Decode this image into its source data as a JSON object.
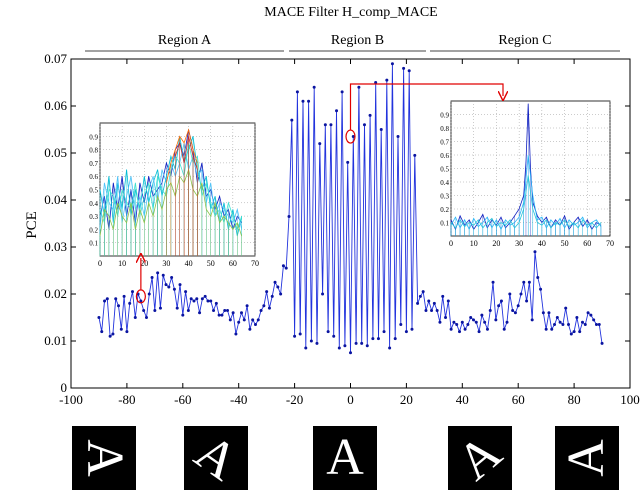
{
  "chart_data": {
    "type": "line",
    "title": "MACE Filter H_comp_MACE",
    "ylabel": "PCE",
    "xlabel": "",
    "xlim": [
      -100,
      100
    ],
    "ylim": [
      0,
      0.07
    ],
    "x_ticks": [
      -100,
      -80,
      -60,
      -40,
      -20,
      0,
      20,
      40,
      60,
      80,
      100
    ],
    "y_ticks": [
      0,
      0.01,
      0.02,
      0.03,
      0.04,
      0.05,
      0.06,
      0.07
    ],
    "grid": false,
    "line_color": "#2233dd",
    "marker": "dot",
    "regions": [
      {
        "label": "Region A",
        "x_start": -100,
        "x_end": -25
      },
      {
        "label": "Region B",
        "x_start": -25,
        "x_end": 25
      },
      {
        "label": "Region C",
        "x_start": 25,
        "x_end": 100
      }
    ],
    "series": [
      {
        "x": [
          -90,
          -89,
          -88,
          -87,
          -86,
          -85,
          -84,
          -83,
          -82,
          -81,
          -80,
          -79,
          -78,
          -77,
          -76,
          -75,
          -74,
          -73,
          -72,
          -71,
          -70,
          -69,
          -68,
          -67,
          -66,
          -65,
          -64,
          -63,
          -62,
          -61,
          -60,
          -59,
          -58,
          -57,
          -56,
          -55,
          -54,
          -53,
          -52,
          -51,
          -50,
          -49,
          -48,
          -47,
          -46,
          -45,
          -44,
          -43,
          -42,
          -41,
          -40,
          -39,
          -38,
          -37,
          -36,
          -35,
          -34,
          -33,
          -32,
          -31,
          -30,
          -29,
          -28,
          -27,
          -26,
          -25,
          -24,
          -23,
          -22,
          -21,
          -20,
          -19,
          -18,
          -17,
          -16,
          -15,
          -14,
          -13,
          -12,
          -11,
          -10,
          -9,
          -8,
          -7,
          -6,
          -5,
          -4,
          -3,
          -2,
          -1,
          0,
          1,
          2,
          3,
          4,
          5,
          6,
          7,
          8,
          9,
          10,
          11,
          12,
          13,
          14,
          15,
          16,
          17,
          18,
          19,
          20,
          21,
          22,
          23,
          24,
          25,
          26,
          27,
          28,
          29,
          30,
          31,
          32,
          33,
          34,
          35,
          36,
          37,
          38,
          39,
          40,
          41,
          42,
          43,
          44,
          45,
          46,
          47,
          48,
          49,
          50,
          51,
          52,
          53,
          54,
          55,
          56,
          57,
          58,
          59,
          60,
          61,
          62,
          63,
          64,
          65,
          66,
          67,
          68,
          69,
          70,
          71,
          72,
          73,
          74,
          75,
          76,
          77,
          78,
          79,
          80,
          81,
          82,
          83,
          84,
          85,
          86,
          87,
          88,
          89,
          90
        ],
        "y": [
          0.015,
          0.012,
          0.0185,
          0.019,
          0.011,
          0.0115,
          0.019,
          0.0175,
          0.0125,
          0.0195,
          0.012,
          0.018,
          0.0205,
          0.015,
          0.02,
          0.0185,
          0.0165,
          0.015,
          0.02,
          0.0235,
          0.0165,
          0.0245,
          0.017,
          0.024,
          0.022,
          0.0215,
          0.0235,
          0.021,
          0.017,
          0.022,
          0.0155,
          0.0205,
          0.0165,
          0.019,
          0.0185,
          0.019,
          0.016,
          0.019,
          0.0195,
          0.0185,
          0.0185,
          0.0165,
          0.018,
          0.0155,
          0.0155,
          0.0165,
          0.0165,
          0.0145,
          0.016,
          0.0115,
          0.014,
          0.016,
          0.0145,
          0.0175,
          0.0125,
          0.0145,
          0.0135,
          0.0145,
          0.0165,
          0.0175,
          0.0205,
          0.017,
          0.0195,
          0.0225,
          0.0215,
          0.02,
          0.026,
          0.0255,
          0.0365,
          0.057,
          0.011,
          0.063,
          0.0115,
          0.061,
          0.0085,
          0.061,
          0.01,
          0.064,
          0.0095,
          0.052,
          0.02,
          0.056,
          0.012,
          0.056,
          0.011,
          0.059,
          0.0085,
          0.063,
          0.009,
          0.048,
          0.0075,
          0.0535,
          0.0095,
          0.064,
          0.0095,
          0.056,
          0.009,
          0.058,
          0.0105,
          0.065,
          0.0105,
          0.055,
          0.012,
          0.0655,
          0.0085,
          0.069,
          0.0105,
          0.0535,
          0.0135,
          0.068,
          0.012,
          0.0675,
          0.0125,
          0.0495,
          0.018,
          0.0195,
          0.0205,
          0.0165,
          0.0185,
          0.0165,
          0.018,
          0.0165,
          0.014,
          0.0195,
          0.015,
          0.0185,
          0.0125,
          0.014,
          0.0135,
          0.012,
          0.014,
          0.0125,
          0.0135,
          0.015,
          0.0145,
          0.014,
          0.012,
          0.0155,
          0.014,
          0.0125,
          0.0165,
          0.0225,
          0.0145,
          0.0175,
          0.0185,
          0.0125,
          0.014,
          0.02,
          0.0165,
          0.016,
          0.0175,
          0.02,
          0.0225,
          0.0185,
          0.0225,
          0.0145,
          0.029,
          0.0235,
          0.021,
          0.016,
          0.0125,
          0.016,
          0.0125,
          0.0135,
          0.015,
          0.014,
          0.0135,
          0.017,
          0.0135,
          0.0115,
          0.012,
          0.015,
          0.012,
          0.014,
          0.0135,
          0.016,
          0.0155,
          0.0145,
          0.0135,
          0.0135,
          0.0095
        ]
      }
    ],
    "annotations": [
      {
        "type": "circle",
        "x": -75,
        "y": 0.0195
      },
      {
        "type": "circle",
        "x": 0,
        "y": 0.0535
      }
    ],
    "insets": [
      {
        "position": "left-middle",
        "type": "line",
        "xlim": [
          0,
          70
        ],
        "ylim": [
          0,
          1
        ],
        "x_ticks": [
          0,
          10,
          20,
          30,
          40,
          50,
          60,
          70
        ],
        "y_ticks": [
          0.1,
          0.2,
          0.3,
          0.4,
          0.5,
          0.6,
          0.7,
          0.8,
          0.9
        ],
        "grid": true,
        "colors": [
          "#1020c0",
          "#00bcd4",
          "#4fc3f7",
          "#40e0d0",
          "#8bc34a",
          "#ff6a00",
          "#c62828"
        ],
        "series": [
          {
            "x": [
              0,
              2,
              4,
              6,
              8,
              10,
              12,
              14,
              16,
              18,
              20,
              22,
              24,
              26,
              28,
              30,
              32,
              34,
              36,
              38,
              40,
              42,
              44,
              46,
              48,
              50,
              52,
              54,
              56,
              58,
              60,
              62,
              64
            ],
            "y": [
              0.3,
              0.45,
              0.2,
              0.55,
              0.35,
              0.6,
              0.3,
              0.5,
              0.25,
              0.55,
              0.4,
              0.6,
              0.45,
              0.5,
              0.55,
              0.7,
              0.6,
              0.8,
              0.85,
              0.75,
              0.95,
              0.8,
              0.55,
              0.7,
              0.45,
              0.5,
              0.35,
              0.45,
              0.3,
              0.35,
              0.2,
              0.3,
              0.25
            ]
          },
          {
            "x": [
              0,
              2,
              4,
              6,
              8,
              10,
              12,
              14,
              16,
              18,
              20,
              22,
              24,
              26,
              28,
              30,
              32,
              34,
              36,
              38,
              40,
              42,
              44,
              46,
              48,
              50,
              52,
              54,
              56,
              58,
              60,
              62,
              64
            ],
            "y": [
              0.5,
              0.3,
              0.6,
              0.25,
              0.55,
              0.35,
              0.65,
              0.3,
              0.5,
              0.35,
              0.6,
              0.4,
              0.55,
              0.65,
              0.45,
              0.6,
              0.75,
              0.65,
              0.9,
              0.7,
              0.8,
              0.9,
              0.65,
              0.5,
              0.6,
              0.35,
              0.45,
              0.25,
              0.4,
              0.2,
              0.35,
              0.15,
              0.3
            ]
          },
          {
            "x": [
              0,
              2,
              4,
              6,
              8,
              10,
              12,
              14,
              16,
              18,
              20,
              22,
              24,
              26,
              28,
              30,
              32,
              34,
              36,
              38,
              40,
              42,
              44,
              46,
              48,
              50,
              52,
              54,
              56,
              58,
              60,
              62,
              64
            ],
            "y": [
              0.2,
              0.55,
              0.4,
              0.35,
              0.6,
              0.25,
              0.45,
              0.6,
              0.35,
              0.45,
              0.3,
              0.5,
              0.6,
              0.4,
              0.65,
              0.55,
              0.7,
              0.6,
              0.7,
              0.85,
              0.65,
              0.75,
              0.6,
              0.65,
              0.4,
              0.55,
              0.3,
              0.4,
              0.35,
              0.3,
              0.25,
              0.35,
              0.2
            ]
          },
          {
            "x": [
              0,
              2,
              4,
              6,
              8,
              10,
              12,
              14,
              16,
              18,
              20,
              22,
              24,
              26,
              28,
              30,
              32,
              34,
              36,
              38,
              40,
              42,
              44,
              46,
              48,
              50,
              52,
              54,
              56,
              58,
              60,
              62,
              64
            ],
            "y": [
              0.35,
              0.25,
              0.5,
              0.45,
              0.3,
              0.5,
              0.4,
              0.35,
              0.55,
              0.3,
              0.45,
              0.55,
              0.35,
              0.6,
              0.5,
              0.45,
              0.65,
              0.75,
              0.7,
              0.6,
              0.85,
              0.7,
              0.75,
              0.45,
              0.55,
              0.4,
              0.3,
              0.35,
              0.25,
              0.4,
              0.3,
              0.2,
              0.3
            ]
          },
          {
            "x": [
              0,
              2,
              4,
              6,
              8,
              10,
              12,
              14,
              16,
              18,
              20,
              22,
              24,
              26,
              28,
              30,
              32,
              34,
              36,
              38,
              40,
              42,
              44,
              46,
              48,
              50,
              52,
              54,
              56,
              58,
              60,
              62,
              64
            ],
            "y": [
              0.15,
              0.35,
              0.3,
              0.2,
              0.4,
              0.3,
              0.25,
              0.4,
              0.2,
              0.35,
              0.25,
              0.4,
              0.3,
              0.45,
              0.35,
              0.5,
              0.55,
              0.45,
              0.6,
              0.55,
              0.65,
              0.5,
              0.45,
              0.55,
              0.35,
              0.3,
              0.4,
              0.25,
              0.3,
              0.25,
              0.2,
              0.25,
              0.15
            ]
          },
          {
            "x": [
              30,
              32,
              34,
              36,
              38,
              40,
              42,
              44
            ],
            "y": [
              0.55,
              0.7,
              0.8,
              0.9,
              0.85,
              0.95,
              0.8,
              0.7
            ]
          },
          {
            "x": [
              34,
              36,
              38,
              40,
              42,
              44
            ],
            "y": [
              0.75,
              0.85,
              0.7,
              0.9,
              0.75,
              0.65
            ]
          }
        ]
      },
      {
        "position": "right-top",
        "type": "line",
        "xlim": [
          0,
          70
        ],
        "ylim": [
          0,
          1
        ],
        "x_ticks": [
          0,
          10,
          20,
          30,
          40,
          50,
          60,
          70
        ],
        "y_ticks": [
          0.1,
          0.2,
          0.3,
          0.4,
          0.5,
          0.6,
          0.7,
          0.8,
          0.9
        ],
        "grid": true,
        "colors": [
          "#1020c0",
          "#29b6f6",
          "#26c6da"
        ],
        "series": [
          {
            "x": [
              0,
              2,
              4,
              6,
              8,
              10,
              12,
              14,
              16,
              18,
              20,
              22,
              24,
              26,
              28,
              30,
              32,
              33,
              34,
              35,
              36,
              38,
              40,
              42,
              44,
              46,
              48,
              50,
              52,
              54,
              56,
              58,
              60,
              62,
              64,
              66
            ],
            "y": [
              0.12,
              0.05,
              0.15,
              0.08,
              0.12,
              0.05,
              0.1,
              0.16,
              0.06,
              0.12,
              0.08,
              0.14,
              0.06,
              0.1,
              0.15,
              0.2,
              0.3,
              0.55,
              0.98,
              0.5,
              0.25,
              0.15,
              0.1,
              0.14,
              0.06,
              0.12,
              0.08,
              0.15,
              0.05,
              0.1,
              0.14,
              0.07,
              0.12,
              0.05,
              0.1,
              0.08
            ]
          },
          {
            "x": [
              0,
              2,
              4,
              6,
              8,
              10,
              12,
              14,
              16,
              18,
              20,
              22,
              24,
              26,
              28,
              30,
              32,
              34,
              36,
              38,
              40,
              42,
              44,
              46,
              48,
              50,
              52,
              54,
              56,
              58,
              60,
              62,
              64,
              66
            ],
            "y": [
              0.08,
              0.14,
              0.06,
              0.12,
              0.05,
              0.13,
              0.07,
              0.1,
              0.14,
              0.06,
              0.12,
              0.05,
              0.12,
              0.08,
              0.1,
              0.14,
              0.25,
              0.6,
              0.3,
              0.12,
              0.14,
              0.06,
              0.12,
              0.08,
              0.13,
              0.06,
              0.12,
              0.08,
              0.1,
              0.14,
              0.06,
              0.1,
              0.12,
              0.07
            ]
          },
          {
            "x": [
              0,
              2,
              4,
              6,
              8,
              10,
              12,
              14,
              16,
              18,
              20,
              22,
              24,
              26,
              28,
              30,
              32,
              34,
              36,
              38,
              40,
              42,
              44,
              46,
              48,
              50,
              52,
              54,
              56,
              58,
              60,
              62,
              64,
              66
            ],
            "y": [
              0.1,
              0.06,
              0.12,
              0.07,
              0.1,
              0.08,
              0.12,
              0.06,
              0.1,
              0.13,
              0.07,
              0.1,
              0.08,
              0.12,
              0.06,
              0.1,
              0.2,
              0.45,
              0.2,
              0.1,
              0.08,
              0.12,
              0.06,
              0.1,
              0.08,
              0.12,
              0.07,
              0.1,
              0.06,
              0.12,
              0.08,
              0.1,
              0.06,
              0.1
            ]
          }
        ]
      }
    ],
    "thumbnail_labels": [
      "A",
      "A",
      "A",
      "A",
      "A"
    ]
  }
}
